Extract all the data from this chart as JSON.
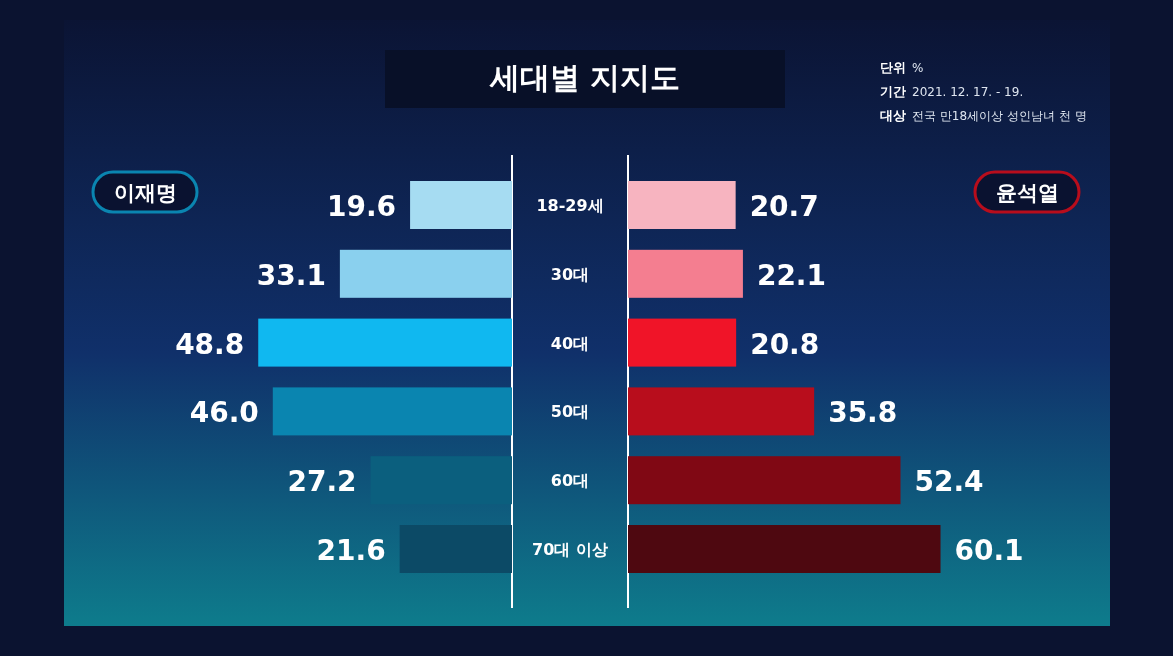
{
  "chart_data": [
    {
      "type": "bar",
      "orientation": "horizontal",
      "title": "세대별 지지도",
      "categories": [
        "18-29세",
        "30대",
        "40대",
        "50대",
        "60대",
        "70대 이상"
      ],
      "series": [
        {
          "name": "이재명",
          "colors": [
            "#a6dcf2",
            "#8ad0ee",
            "#10b8f0",
            "#0a85b0",
            "#0b5f7e",
            "#0c4a66"
          ],
          "color": "#0a85b0",
          "values": [
            19.6,
            33.1,
            48.8,
            46.0,
            27.2,
            21.6
          ],
          "value_labels": [
            "19.6",
            "33.1",
            "48.8",
            "46.0",
            "27.2",
            "21.6"
          ]
        }
      ],
      "legend": "top left",
      "annotations": [
        "단위 %",
        "기간 2021. 12. 17. - 19.",
        "대상 전국 만18세이상 성인남녀 천 명"
      ]
    },
    {
      "type": "bar",
      "orientation": "horizontal",
      "categories": [
        "18-29세",
        "30대",
        "40대",
        "50대",
        "60대",
        "70대 이상"
      ],
      "tick_labels": false,
      "series": [
        {
          "name": "윤석열",
          "colors": [
            "#f7b4c0",
            "#f47e90",
            "#f01428",
            "#b80d1c",
            "#800814",
            "#4e0810"
          ],
          "color": "#b80d1c",
          "values": [
            20.7,
            22.1,
            20.8,
            35.8,
            52.4,
            60.1
          ],
          "value_labels": [
            "20.7",
            "22.1",
            "20.8",
            "35.8",
            "52.4",
            "60.1"
          ]
        }
      ],
      "legend": "top right"
    }
  ]
}
